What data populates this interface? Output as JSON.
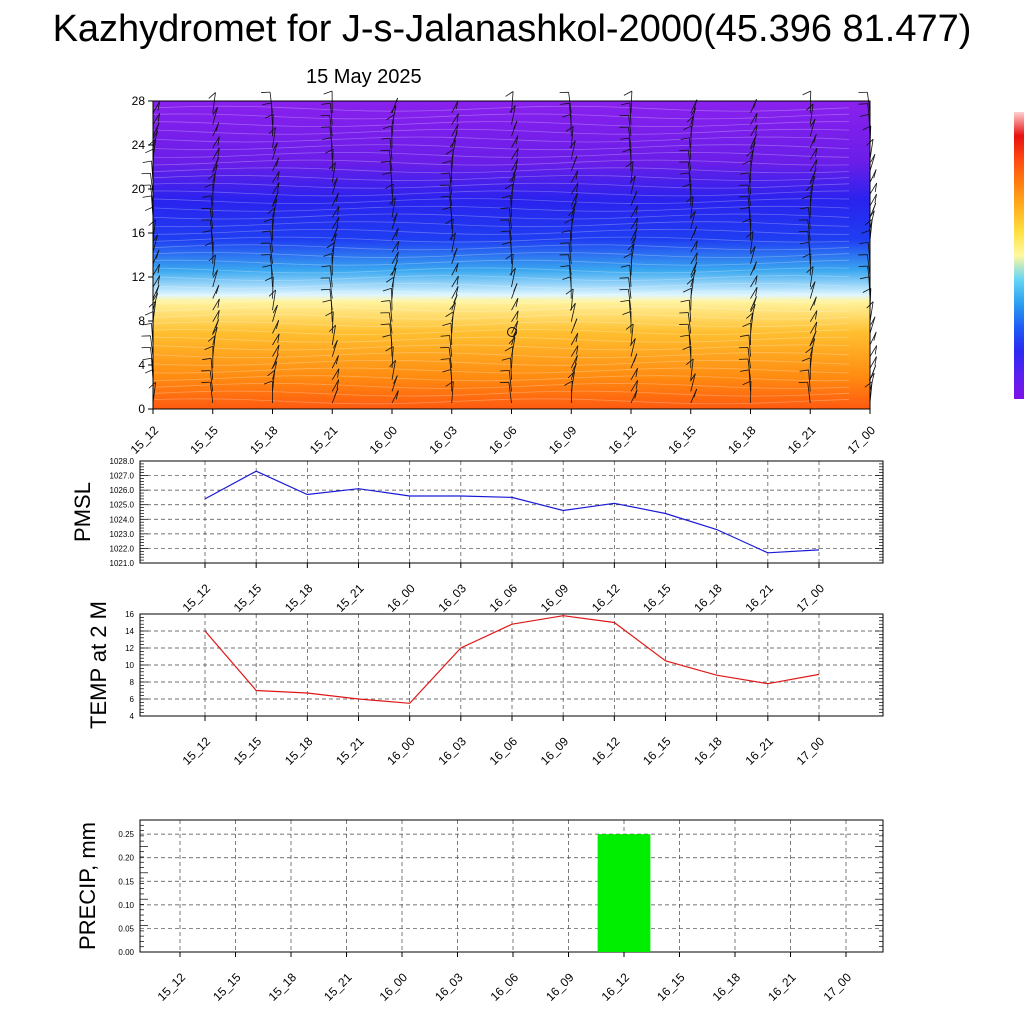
{
  "title": "Kazhydromet for J-s-Jalanashkol-2000(45.396 81.477)",
  "subtitle": "15 May 2025",
  "colors": {
    "pmsl_line": "#1a1ad6",
    "temp_line": "#e01818",
    "precip_bar": "#00ee00",
    "grid": "#444444"
  },
  "chart_data": [
    {
      "type": "heatmap",
      "name": "vertical-profile",
      "categories": [
        "15_12",
        "15_15",
        "15_18",
        "15_21",
        "16_00",
        "16_03",
        "16_06",
        "16_09",
        "16_12",
        "16_15",
        "16_18",
        "16_21",
        "17_00"
      ],
      "ylim": [
        0,
        28
      ],
      "yticks": [
        "0",
        "4",
        "8",
        "12",
        "16",
        "20",
        "24",
        "28"
      ],
      "colorbar": [
        "#7d12e6",
        "#5a20f0",
        "#2a2af2",
        "#1e5cf5",
        "#2aa0f0",
        "#66d6f5",
        "#fff8a0",
        "#ffe040",
        "#ffb020",
        "#ff8010",
        "#ff4a10",
        "#e81010",
        "#ffd0d0"
      ],
      "wind_barbs": true
    },
    {
      "type": "line",
      "name": "PMSL",
      "ylabel": "PMSL",
      "categories": [
        "15_12",
        "15_15",
        "15_18",
        "15_21",
        "16_00",
        "16_03",
        "16_06",
        "16_09",
        "16_12",
        "16_15",
        "16_18",
        "16_21",
        "17_00"
      ],
      "values": [
        1025.4,
        1027.3,
        1025.7,
        1026.1,
        1025.6,
        1025.6,
        1025.5,
        1024.6,
        1025.1,
        1024.4,
        1023.3,
        1021.7,
        1021.9
      ],
      "ylim": [
        1021.0,
        1028.0
      ],
      "yticks": [
        "1021.0",
        "1022.0",
        "1023.0",
        "1024.0",
        "1025.0",
        "1026.0",
        "1027.0",
        "1028.0"
      ],
      "grid": true
    },
    {
      "type": "line",
      "name": "TEMP at 2 M",
      "ylabel": "TEMP at 2 M",
      "categories": [
        "15_12",
        "15_15",
        "15_18",
        "15_21",
        "16_00",
        "16_03",
        "16_06",
        "16_09",
        "16_12",
        "16_15",
        "16_18",
        "16_21",
        "17_00"
      ],
      "values": [
        14.0,
        7.0,
        6.7,
        6.0,
        5.5,
        12.0,
        14.8,
        15.8,
        15.0,
        10.5,
        8.8,
        7.8,
        8.9
      ],
      "ylim": [
        4,
        16
      ],
      "yticks": [
        "4",
        "6",
        "8",
        "10",
        "12",
        "14",
        "16"
      ],
      "grid": true
    },
    {
      "type": "bar",
      "name": "PRECIP, mm",
      "ylabel": "PRECIP, mm",
      "categories": [
        "15_12",
        "15_15",
        "15_18",
        "15_21",
        "16_00",
        "16_03",
        "16_06",
        "16_09",
        "16_12",
        "16_15",
        "16_18",
        "16_21",
        "17_00"
      ],
      "values": [
        0,
        0,
        0,
        0,
        0,
        0,
        0,
        0,
        0.25,
        0,
        0,
        0,
        0
      ],
      "ylim": [
        0,
        0.28
      ],
      "yticks": [
        "0.00",
        "0.05",
        "0.10",
        "0.15",
        "0.20",
        "0.25"
      ],
      "grid": true
    }
  ]
}
